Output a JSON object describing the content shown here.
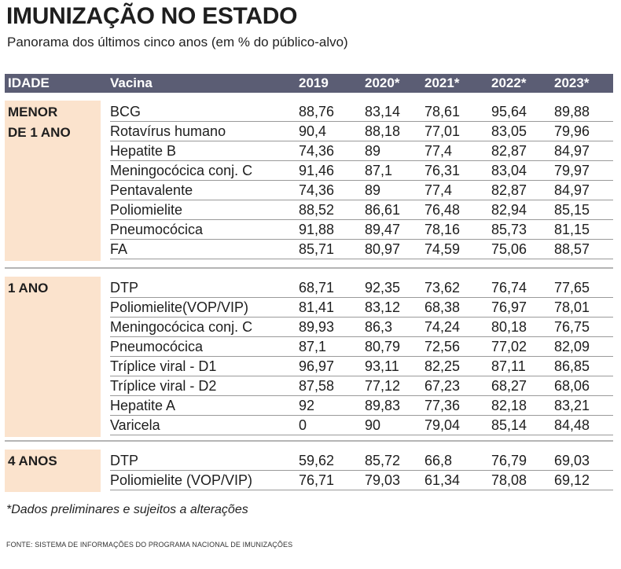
{
  "title": "IMUNIZAÇÃO NO ESTADO",
  "subtitle": "Panorama dos últimos cinco anos (em % do público-alvo)",
  "footnote": "*Dados preliminares e sujeitos a alterações",
  "source": "FONTE: SISTEMA DE INFORMAÇÕES DO PROGRAMA NACIONAL DE IMUNIZAÇÕES",
  "colors": {
    "header_bg": "#5b5d74",
    "age_bg": "#fbe3cd"
  },
  "chart_data": {
    "type": "table",
    "columns": [
      "IDADE",
      "Vacina",
      "2019",
      "2020*",
      "2021*",
      "2022*",
      "2023*"
    ],
    "groups": [
      {
        "age_lines": [
          "MENOR",
          "DE 1 ANO"
        ],
        "rows": [
          {
            "vacina": "BCG",
            "values": [
              "88,76",
              "83,14",
              "78,61",
              "95,64",
              "89,88"
            ]
          },
          {
            "vacina": "Rotavírus humano",
            "values": [
              "90,4",
              "88,18",
              "77,01",
              "83,05",
              "79,96"
            ]
          },
          {
            "vacina": "Hepatite B",
            "values": [
              "74,36",
              "89",
              "77,4",
              "82,87",
              "84,97"
            ]
          },
          {
            "vacina": "Meningocócica conj. C",
            "values": [
              "91,46",
              "87,1",
              "76,31",
              "83,04",
              "79,97"
            ]
          },
          {
            "vacina": "Pentavalente",
            "values": [
              "74,36",
              "89",
              "77,4",
              "82,87",
              "84,97"
            ]
          },
          {
            "vacina": "Poliomielite",
            "values": [
              "88,52",
              "86,61",
              "76,48",
              "82,94",
              "85,15"
            ]
          },
          {
            "vacina": "Pneumocócica",
            "values": [
              "91,88",
              "89,47",
              "78,16",
              "85,73",
              "81,15"
            ]
          },
          {
            "vacina": "FA",
            "values": [
              "85,71",
              "80,97",
              "74,59",
              "75,06",
              "88,57"
            ]
          }
        ]
      },
      {
        "age_lines": [
          "1 ANO"
        ],
        "rows": [
          {
            "vacina": "DTP",
            "values": [
              "68,71",
              "92,35",
              "73,62",
              "76,74",
              "77,65"
            ]
          },
          {
            "vacina": "Poliomielite(VOP/VIP)",
            "values": [
              "81,41",
              "83,12",
              "68,38",
              "76,97",
              "78,01"
            ]
          },
          {
            "vacina": "Meningocócica conj. C",
            "values": [
              "89,93",
              "86,3",
              "74,24",
              "80,18",
              "76,75"
            ]
          },
          {
            "vacina": "Pneumocócica",
            "values": [
              "87,1",
              "80,79",
              "72,56",
              "77,02",
              "82,09"
            ]
          },
          {
            "vacina": "Tríplice viral - D1",
            "values": [
              "96,97",
              "93,11",
              "82,25",
              "87,11",
              "86,85"
            ]
          },
          {
            "vacina": "Tríplice viral - D2",
            "values": [
              "87,58",
              "77,12",
              "67,23",
              "68,27",
              "68,06"
            ]
          },
          {
            "vacina": "Hepatite A",
            "values": [
              "92",
              "89,83",
              "77,36",
              "82,18",
              "83,21"
            ]
          },
          {
            "vacina": "Varicela",
            "values": [
              "0",
              "90",
              "79,04",
              "85,14",
              "84,48"
            ]
          }
        ]
      },
      {
        "age_lines": [
          "4 ANOS"
        ],
        "rows": [
          {
            "vacina": "DTP",
            "values": [
              "59,62",
              "85,72",
              "66,8",
              "76,79",
              "69,03"
            ]
          },
          {
            "vacina": "Poliomielite (VOP/VIP)",
            "values": [
              "76,71",
              "79,03",
              "61,34",
              "78,08",
              "69,12"
            ]
          }
        ]
      }
    ]
  }
}
